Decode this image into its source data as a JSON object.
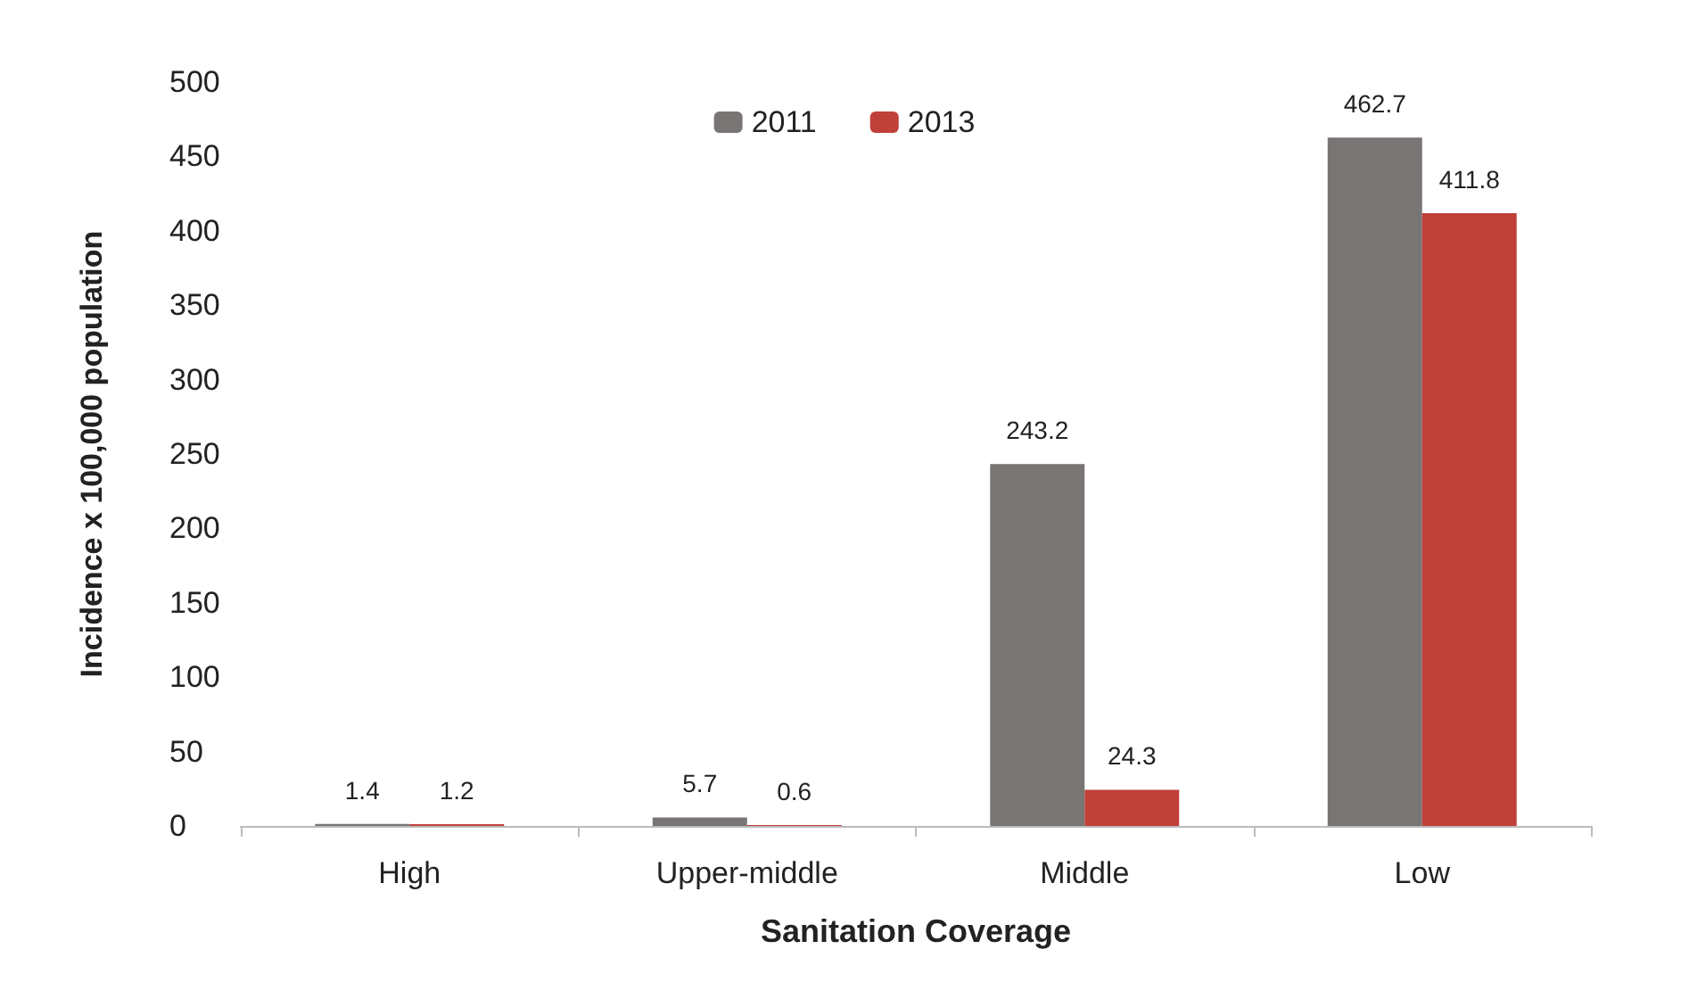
{
  "chart_data": {
    "type": "bar",
    "xlabel": "Sanitation Coverage",
    "ylabel": "Incidence x 100,000 population",
    "categories": [
      "High",
      "Upper-middle",
      "Middle",
      "Low"
    ],
    "series": [
      {
        "name": "2011",
        "color": "#7a7575",
        "values": [
          1.4,
          5.7,
          243.2,
          462.7
        ]
      },
      {
        "name": "2013",
        "color": "#c0403a",
        "values": [
          1.2,
          0.6,
          24.3,
          411.8
        ]
      }
    ],
    "ylim": [
      0,
      500
    ],
    "yticks": [
      0,
      50,
      100,
      150,
      200,
      250,
      300,
      350,
      400,
      450,
      500
    ],
    "grid": false,
    "legend": "top",
    "data_labels": true
  }
}
